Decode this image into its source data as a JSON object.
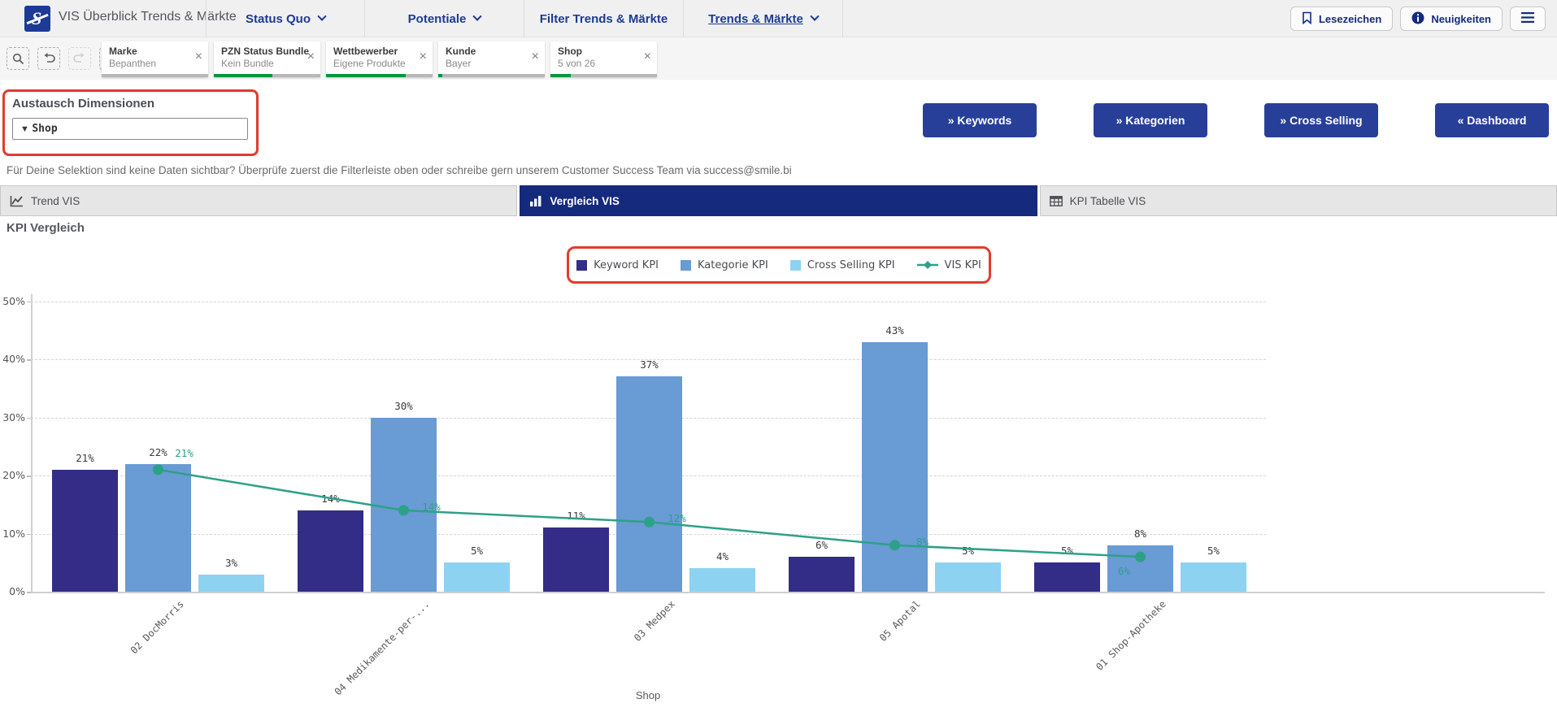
{
  "annotation_color": "#e23b2e",
  "header": {
    "app_title": "VIS Überblick Trends & Märkte",
    "logo": "smile-bi-logo",
    "nav_items": [
      {
        "label": "Status Quo",
        "chevron": true,
        "active": false
      },
      {
        "label": "Potentiale",
        "chevron": true,
        "active": false
      },
      {
        "label": "Filter Trends & Märkte",
        "chevron": false,
        "active": false
      },
      {
        "label": "Trends & Märkte",
        "chevron": true,
        "active": true
      }
    ],
    "actions": [
      {
        "label": "Lesezeichen",
        "icon": "bookmark-icon"
      },
      {
        "label": "Neuigkeiten",
        "icon": "info-icon"
      },
      {
        "label": "",
        "icon": "menu-icon"
      }
    ]
  },
  "selection_bar": {
    "tools": [
      {
        "icon": "search-icon",
        "disabled": false
      },
      {
        "icon": "undo-icon",
        "disabled": false
      },
      {
        "icon": "redo-icon",
        "disabled": true
      },
      {
        "icon": "clear-selections-icon",
        "disabled": false
      }
    ],
    "close_glyph": "×",
    "filters": [
      {
        "field": "Marke",
        "value": "Bepanthen",
        "selected_pct": 0
      },
      {
        "field": "PZN Status Bundle",
        "value": "Kein Bundle",
        "selected_pct": 55
      },
      {
        "field": "Wettbewerber",
        "value": "Eigene Produkte",
        "selected_pct": 75
      },
      {
        "field": "Kunde",
        "value": "Bayer",
        "selected_pct": 4
      },
      {
        "field": "Shop",
        "value": "5 von 26",
        "selected_pct": 19
      }
    ]
  },
  "dimension_switcher": {
    "title": "Austausch Dimensionen",
    "selected_value": "Shop"
  },
  "nav_buttons": [
    {
      "label": "Keywords",
      "arrow": "»"
    },
    {
      "label": "Kategorien",
      "arrow": "»"
    },
    {
      "label": "Cross Selling",
      "arrow": "»"
    },
    {
      "label": "Dashboard",
      "arrow": "«"
    }
  ],
  "notice": "Für Deine Selektion sind keine Daten sichtbar? Überprüfe zuerst die Filterleiste oben oder schreibe gern unserem Customer Success Team via success@smile.bi",
  "tabs": [
    {
      "label": "Trend VIS",
      "icon": "line-chart-icon",
      "active": false
    },
    {
      "label": "Vergleich VIS",
      "icon": "bar-chart-icon",
      "active": true
    },
    {
      "label": "KPI Tabelle VIS",
      "icon": "table-icon",
      "active": false
    }
  ],
  "section_title": "KPI Vergleich",
  "chart_data": {
    "type": "bar",
    "title": "KPI Vergleich",
    "categories": [
      "02 DocMorris",
      "04 Medikamente-per-...",
      "03 Medpex",
      "05 Apotal",
      "01 Shop-Apotheke"
    ],
    "series": [
      {
        "name": "Keyword KPI",
        "kind": "bar",
        "color": "#332d87",
        "values": [
          21,
          14,
          11,
          6,
          5
        ]
      },
      {
        "name": "Kategorie KPI",
        "kind": "bar",
        "color": "#699bd4",
        "values": [
          22,
          30,
          37,
          43,
          8
        ]
      },
      {
        "name": "Cross Selling KPI",
        "kind": "bar",
        "color": "#8ed2f2",
        "values": [
          3,
          5,
          4,
          5,
          5
        ]
      },
      {
        "name": "VIS KPI",
        "kind": "line",
        "color": "#2da188",
        "values": [
          21,
          14,
          12,
          8,
          6
        ]
      }
    ],
    "xlabel": "Shop",
    "ylim": [
      0,
      50
    ],
    "yticks": [
      0,
      10,
      20,
      30,
      40,
      50
    ],
    "ytick_suffix": "%",
    "value_suffix": "%",
    "grid": true,
    "legend_position": "top"
  }
}
